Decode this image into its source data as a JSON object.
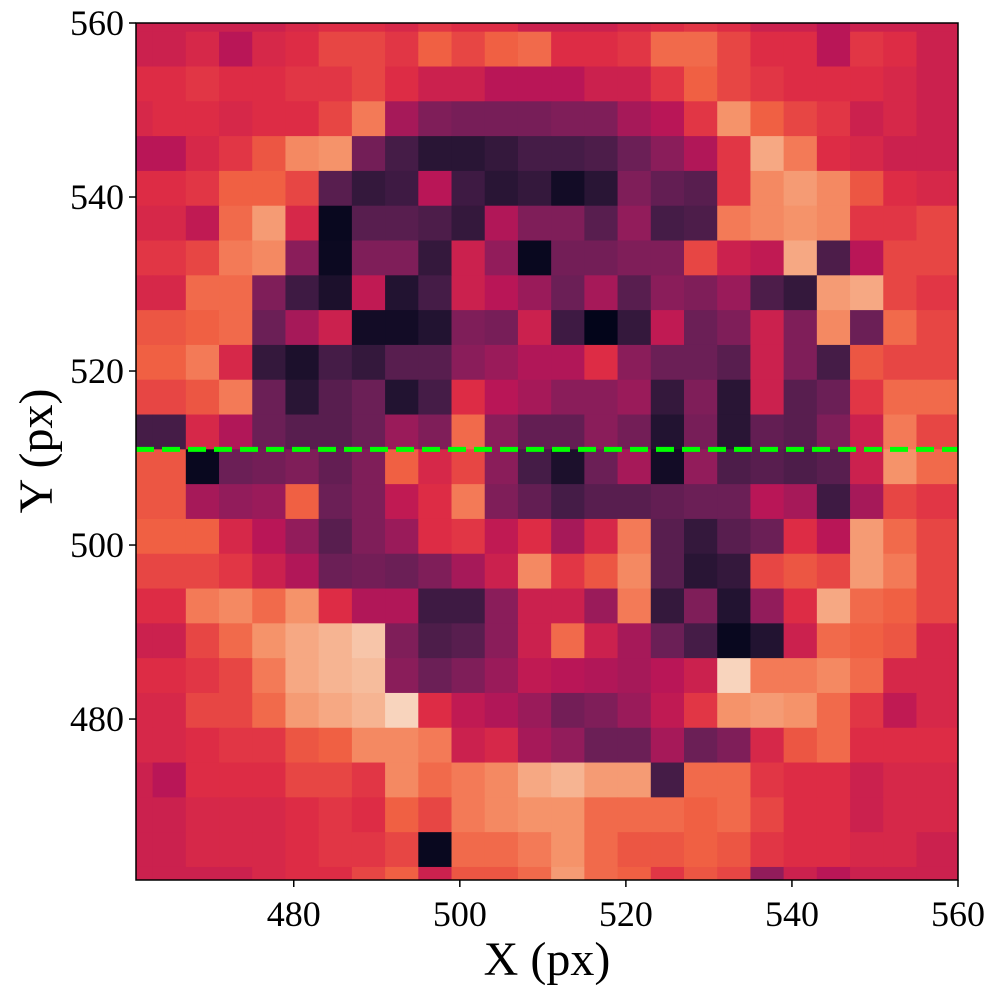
{
  "chart_data": {
    "type": "heatmap",
    "xlabel": "X (px)",
    "ylabel": "Y (px)",
    "colormap": "rocket",
    "cell_size": 4,
    "xlim": [
      461,
      560
    ],
    "ylim": [
      461.5,
      560
    ],
    "xticks": [
      480,
      500,
      520,
      540,
      560
    ],
    "yticks": [
      480,
      500,
      520,
      540,
      560
    ],
    "hline": 511,
    "hline_color": "#00ff00",
    "x": [
      461,
      465,
      469,
      473,
      477,
      481,
      485,
      489,
      493,
      497,
      501,
      505,
      509,
      513,
      517,
      521,
      525,
      529,
      533,
      537,
      541,
      545,
      549,
      553,
      557,
      561
    ],
    "y": [
      561,
      557,
      553,
      549,
      545,
      541,
      537,
      533,
      529,
      525,
      521,
      517,
      513,
      509,
      505,
      501,
      497,
      493,
      489,
      485,
      481,
      477,
      473,
      469,
      465,
      461
    ],
    "values": [
      [
        0.55,
        0.55,
        0.55,
        0.55,
        0.55,
        0.58,
        0.6,
        0.6,
        0.58,
        0.62,
        0.6,
        0.6,
        0.55,
        0.55,
        0.55,
        0.58,
        0.6,
        0.62,
        0.6,
        0.55,
        0.55,
        0.5,
        0.55,
        0.55,
        0.55,
        0.55
      ],
      [
        0.55,
        0.55,
        0.58,
        0.5,
        0.58,
        0.6,
        0.65,
        0.65,
        0.62,
        0.7,
        0.65,
        0.7,
        0.72,
        0.6,
        0.6,
        0.62,
        0.72,
        0.72,
        0.65,
        0.6,
        0.6,
        0.5,
        0.62,
        0.6,
        0.55,
        0.55
      ],
      [
        0.6,
        0.6,
        0.62,
        0.6,
        0.6,
        0.62,
        0.62,
        0.65,
        0.6,
        0.55,
        0.55,
        0.5,
        0.5,
        0.5,
        0.55,
        0.55,
        0.62,
        0.7,
        0.65,
        0.62,
        0.6,
        0.6,
        0.6,
        0.58,
        0.55,
        0.55
      ],
      [
        0.58,
        0.6,
        0.6,
        0.58,
        0.6,
        0.6,
        0.65,
        0.75,
        0.45,
        0.35,
        0.33,
        0.33,
        0.33,
        0.35,
        0.35,
        0.45,
        0.5,
        0.62,
        0.8,
        0.7,
        0.65,
        0.62,
        0.55,
        0.58,
        0.55,
        0.55
      ],
      [
        0.5,
        0.5,
        0.58,
        0.62,
        0.68,
        0.78,
        0.8,
        0.32,
        0.2,
        0.12,
        0.12,
        0.15,
        0.2,
        0.2,
        0.22,
        0.3,
        0.38,
        0.48,
        0.62,
        0.85,
        0.75,
        0.6,
        0.58,
        0.55,
        0.55,
        0.55
      ],
      [
        0.6,
        0.6,
        0.62,
        0.7,
        0.7,
        0.65,
        0.25,
        0.15,
        0.18,
        0.5,
        0.18,
        0.12,
        0.15,
        0.05,
        0.12,
        0.35,
        0.28,
        0.25,
        0.62,
        0.78,
        0.82,
        0.78,
        0.68,
        0.6,
        0.58,
        0.58
      ],
      [
        0.58,
        0.58,
        0.52,
        0.72,
        0.82,
        0.58,
        0.02,
        0.25,
        0.25,
        0.22,
        0.15,
        0.48,
        0.35,
        0.35,
        0.25,
        0.4,
        0.2,
        0.22,
        0.75,
        0.78,
        0.8,
        0.78,
        0.62,
        0.62,
        0.65,
        0.65
      ],
      [
        0.62,
        0.62,
        0.65,
        0.75,
        0.78,
        0.38,
        0.03,
        0.35,
        0.35,
        0.15,
        0.55,
        0.4,
        0.02,
        0.32,
        0.32,
        0.35,
        0.35,
        0.65,
        0.55,
        0.52,
        0.85,
        0.22,
        0.5,
        0.65,
        0.65,
        0.65
      ],
      [
        0.58,
        0.58,
        0.72,
        0.72,
        0.35,
        0.18,
        0.08,
        0.52,
        0.1,
        0.2,
        0.55,
        0.5,
        0.42,
        0.3,
        0.45,
        0.25,
        0.38,
        0.35,
        0.42,
        0.22,
        0.15,
        0.82,
        0.85,
        0.65,
        0.62,
        0.62
      ],
      [
        0.68,
        0.68,
        0.7,
        0.72,
        0.3,
        0.45,
        0.55,
        0.05,
        0.05,
        0.1,
        0.35,
        0.33,
        0.55,
        0.18,
        0.0,
        0.15,
        0.52,
        0.3,
        0.35,
        0.55,
        0.35,
        0.78,
        0.3,
        0.72,
        0.65,
        0.65
      ],
      [
        0.7,
        0.7,
        0.75,
        0.58,
        0.15,
        0.08,
        0.2,
        0.15,
        0.25,
        0.25,
        0.38,
        0.42,
        0.48,
        0.48,
        0.6,
        0.38,
        0.3,
        0.3,
        0.25,
        0.55,
        0.35,
        0.2,
        0.68,
        0.65,
        0.65,
        0.65
      ],
      [
        0.65,
        0.65,
        0.68,
        0.75,
        0.3,
        0.12,
        0.25,
        0.3,
        0.1,
        0.2,
        0.6,
        0.5,
        0.45,
        0.38,
        0.38,
        0.42,
        0.15,
        0.35,
        0.12,
        0.55,
        0.25,
        0.3,
        0.62,
        0.72,
        0.72,
        0.72
      ],
      [
        0.2,
        0.2,
        0.58,
        0.48,
        0.3,
        0.25,
        0.25,
        0.3,
        0.42,
        0.35,
        0.72,
        0.38,
        0.28,
        0.28,
        0.38,
        0.32,
        0.1,
        0.33,
        0.12,
        0.28,
        0.25,
        0.35,
        0.55,
        0.75,
        0.65,
        0.65
      ],
      [
        0.68,
        0.68,
        0.02,
        0.3,
        0.32,
        0.35,
        0.28,
        0.35,
        0.7,
        0.58,
        0.65,
        0.38,
        0.2,
        0.08,
        0.3,
        0.45,
        0.05,
        0.4,
        0.22,
        0.25,
        0.22,
        0.25,
        0.55,
        0.8,
        0.72,
        0.72
      ],
      [
        0.68,
        0.68,
        0.45,
        0.4,
        0.42,
        0.7,
        0.3,
        0.35,
        0.52,
        0.6,
        0.75,
        0.35,
        0.28,
        0.2,
        0.25,
        0.25,
        0.28,
        0.3,
        0.3,
        0.5,
        0.45,
        0.18,
        0.45,
        0.65,
        0.62,
        0.62
      ],
      [
        0.7,
        0.7,
        0.7,
        0.58,
        0.5,
        0.4,
        0.25,
        0.35,
        0.42,
        0.6,
        0.62,
        0.52,
        0.6,
        0.45,
        0.58,
        0.75,
        0.25,
        0.15,
        0.25,
        0.3,
        0.6,
        0.5,
        0.82,
        0.72,
        0.65,
        0.65
      ],
      [
        0.65,
        0.65,
        0.65,
        0.62,
        0.55,
        0.48,
        0.3,
        0.32,
        0.3,
        0.35,
        0.45,
        0.55,
        0.78,
        0.62,
        0.68,
        0.78,
        0.25,
        0.12,
        0.15,
        0.65,
        0.68,
        0.65,
        0.82,
        0.75,
        0.65,
        0.65
      ],
      [
        0.6,
        0.6,
        0.75,
        0.78,
        0.72,
        0.8,
        0.6,
        0.48,
        0.48,
        0.18,
        0.18,
        0.38,
        0.55,
        0.55,
        0.42,
        0.75,
        0.15,
        0.35,
        0.1,
        0.4,
        0.6,
        0.85,
        0.72,
        0.7,
        0.65,
        0.65
      ],
      [
        0.55,
        0.55,
        0.65,
        0.72,
        0.8,
        0.85,
        0.88,
        0.92,
        0.35,
        0.22,
        0.25,
        0.38,
        0.55,
        0.72,
        0.55,
        0.45,
        0.3,
        0.2,
        0.02,
        0.1,
        0.55,
        0.72,
        0.7,
        0.68,
        0.58,
        0.58
      ],
      [
        0.6,
        0.6,
        0.62,
        0.65,
        0.75,
        0.85,
        0.88,
        0.9,
        0.38,
        0.3,
        0.35,
        0.42,
        0.52,
        0.5,
        0.48,
        0.45,
        0.5,
        0.55,
        0.95,
        0.75,
        0.75,
        0.78,
        0.72,
        0.58,
        0.58,
        0.58
      ],
      [
        0.58,
        0.58,
        0.65,
        0.65,
        0.72,
        0.82,
        0.85,
        0.88,
        0.95,
        0.6,
        0.52,
        0.48,
        0.42,
        0.32,
        0.35,
        0.42,
        0.52,
        0.62,
        0.8,
        0.82,
        0.8,
        0.72,
        0.62,
        0.52,
        0.58,
        0.58
      ],
      [
        0.58,
        0.58,
        0.6,
        0.62,
        0.62,
        0.68,
        0.7,
        0.78,
        0.78,
        0.75,
        0.55,
        0.58,
        0.45,
        0.4,
        0.3,
        0.3,
        0.45,
        0.3,
        0.35,
        0.58,
        0.68,
        0.72,
        0.6,
        0.6,
        0.6,
        0.6
      ],
      [
        0.55,
        0.5,
        0.6,
        0.6,
        0.6,
        0.65,
        0.65,
        0.62,
        0.78,
        0.72,
        0.75,
        0.78,
        0.85,
        0.88,
        0.82,
        0.82,
        0.2,
        0.72,
        0.72,
        0.62,
        0.6,
        0.6,
        0.55,
        0.58,
        0.58,
        0.58
      ],
      [
        0.55,
        0.55,
        0.58,
        0.58,
        0.58,
        0.6,
        0.62,
        0.6,
        0.7,
        0.65,
        0.75,
        0.78,
        0.8,
        0.8,
        0.72,
        0.72,
        0.72,
        0.7,
        0.72,
        0.65,
        0.6,
        0.6,
        0.55,
        0.58,
        0.58,
        0.58
      ],
      [
        0.55,
        0.55,
        0.58,
        0.58,
        0.58,
        0.6,
        0.62,
        0.62,
        0.65,
        0.02,
        0.72,
        0.72,
        0.75,
        0.8,
        0.72,
        0.68,
        0.68,
        0.7,
        0.68,
        0.62,
        0.6,
        0.6,
        0.58,
        0.58,
        0.55,
        0.55
      ],
      [
        0.55,
        0.55,
        0.55,
        0.55,
        0.58,
        0.6,
        0.6,
        0.65,
        0.7,
        0.55,
        0.68,
        0.68,
        0.72,
        0.82,
        0.72,
        0.7,
        0.62,
        0.68,
        0.65,
        0.4,
        0.55,
        0.5,
        0.55,
        0.55,
        0.55,
        0.55
      ]
    ]
  }
}
